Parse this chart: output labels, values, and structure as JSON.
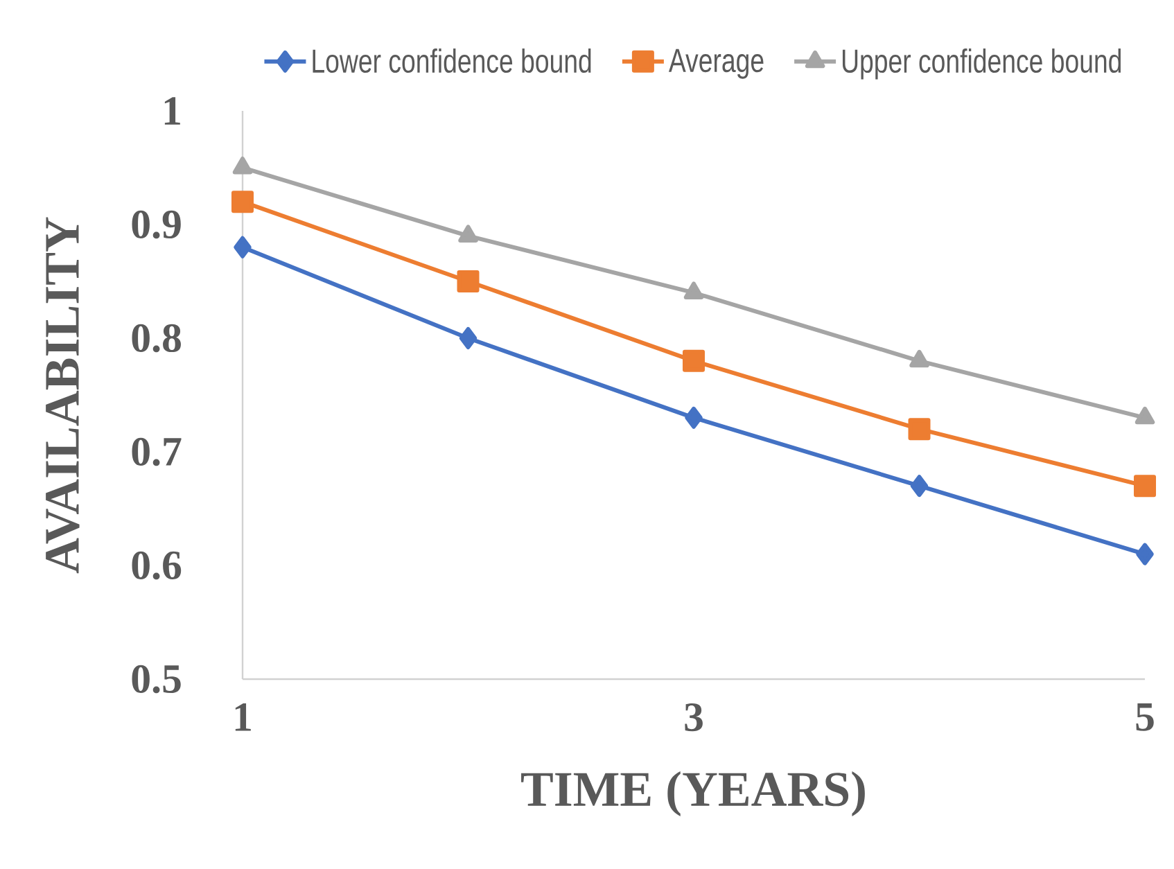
{
  "chart_data": {
    "type": "line",
    "xlabel": "TIME (YEARS)",
    "ylabel": "AVAILABILITY",
    "x": [
      1,
      2,
      3,
      4,
      5
    ],
    "xlim": [
      1,
      5
    ],
    "xticks": [
      1,
      3,
      5
    ],
    "ylim": [
      0.5,
      1
    ],
    "yticks": [
      0.5,
      0.6,
      0.7,
      0.8,
      0.9,
      1
    ],
    "grid": false,
    "legend": "top",
    "line_style": "solid",
    "series": [
      {
        "name": "Lower confidence bound",
        "color": "#4472c4",
        "marker": "diamond",
        "values": [
          0.88,
          0.8,
          0.73,
          0.67,
          0.61
        ]
      },
      {
        "name": "Average",
        "color": "#ed7d31",
        "marker": "square",
        "values": [
          0.92,
          0.85,
          0.78,
          0.72,
          0.67
        ]
      },
      {
        "name": "Upper confidence bound",
        "color": "#a5a5a5",
        "marker": "triangle",
        "values": [
          0.95,
          0.89,
          0.84,
          0.78,
          0.73
        ]
      }
    ]
  }
}
